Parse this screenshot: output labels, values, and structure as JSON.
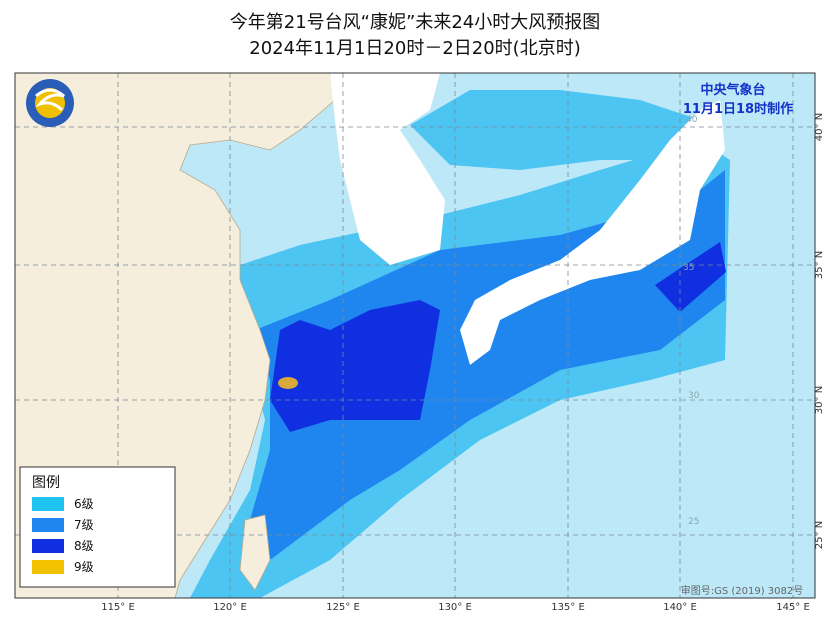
{
  "header": {
    "title": "今年第21号台风“康妮”未来24小时大风预报图",
    "subtitle": "2024年11月1日20时－2日20时(北京时)"
  },
  "issuer": {
    "agency": "中央气象台",
    "issued": "11月1日18时制作"
  },
  "legend": {
    "title": "图例",
    "items": [
      {
        "label": "6级",
        "color": "#1ec3f0"
      },
      {
        "label": "7级",
        "color": "#1e86ee"
      },
      {
        "label": "8级",
        "color": "#0f2fe0"
      },
      {
        "label": "9级",
        "color": "#f2c200"
      }
    ]
  },
  "lon_labels": [
    "115° E",
    "120° E",
    "125° E",
    "130° E",
    "135° E",
    "140° E",
    "145° E"
  ],
  "lat_labels": [
    "40° N",
    "35° N",
    "30° N",
    "25° N"
  ],
  "grid_labels": [
    "40",
    "35",
    "30",
    "25"
  ],
  "approval": "审图号:GS (2019) 3082号"
}
